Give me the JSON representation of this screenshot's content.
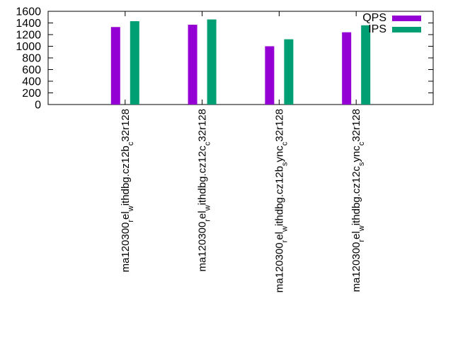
{
  "chart_data": {
    "type": "bar",
    "title": "",
    "xlabel": "",
    "ylabel": "",
    "ylim": [
      0,
      1600
    ],
    "yticks": [
      "0",
      "200",
      "400",
      "600",
      "800",
      "1000",
      "1200",
      "1400",
      "1600"
    ],
    "categories": [
      {
        "main": "ma120300",
        "parts": [
          [
            "",
            "ma120300"
          ],
          [
            "sub",
            "r"
          ],
          [
            "",
            "el"
          ],
          [
            "sub",
            "w"
          ],
          [
            "",
            "ithdbg.cz12b"
          ],
          [
            "sub",
            "c"
          ],
          [
            "",
            "32r128"
          ]
        ]
      },
      {
        "main": "ma120300",
        "parts": [
          [
            "",
            "ma120300"
          ],
          [
            "sub",
            "r"
          ],
          [
            "",
            "el"
          ],
          [
            "sub",
            "w"
          ],
          [
            "",
            "ithdbg.cz12c"
          ],
          [
            "sub",
            "c"
          ],
          [
            "",
            "32r128"
          ]
        ]
      },
      {
        "main": "ma120300",
        "parts": [
          [
            "",
            "ma120300"
          ],
          [
            "sub",
            "r"
          ],
          [
            "",
            "el"
          ],
          [
            "sub",
            "w"
          ],
          [
            "",
            "ithdbg.cz12b"
          ],
          [
            "sub",
            "s"
          ],
          [
            "",
            "ync"
          ],
          [
            "sub",
            "c"
          ],
          [
            "",
            "32r128"
          ]
        ]
      },
      {
        "main": "ma120300",
        "parts": [
          [
            "",
            "ma120300"
          ],
          [
            "sub",
            "r"
          ],
          [
            "",
            "el"
          ],
          [
            "sub",
            "w"
          ],
          [
            "",
            "ithdbg.cz12c"
          ],
          [
            "sub",
            "s"
          ],
          [
            "",
            "ync"
          ],
          [
            "sub",
            "c"
          ],
          [
            "",
            "32r128"
          ]
        ]
      }
    ],
    "series": [
      {
        "name": "QPS",
        "color": "#9400d3",
        "values": [
          1330,
          1370,
          1000,
          1240
        ]
      },
      {
        "name": "IPS",
        "color": "#009e73",
        "values": [
          1430,
          1460,
          1120,
          1360
        ]
      }
    ],
    "legend_position": "top-right",
    "grid": false
  }
}
